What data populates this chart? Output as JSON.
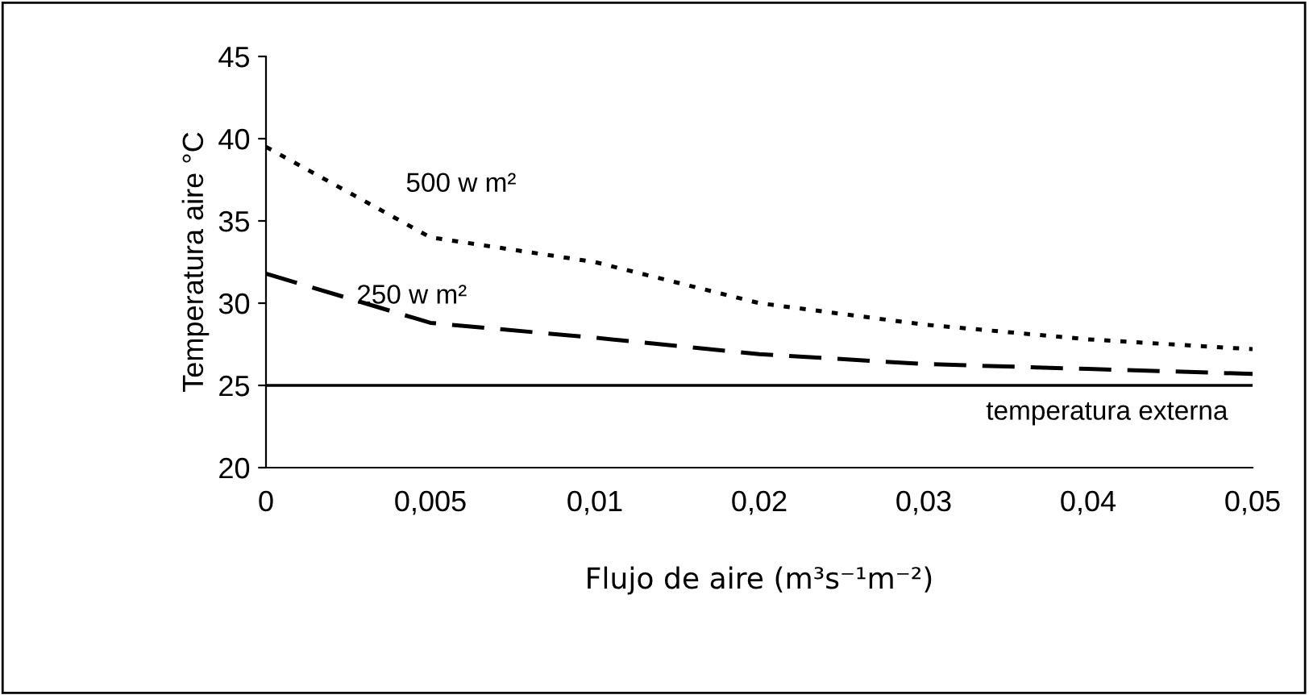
{
  "chart_data": {
    "type": "line",
    "xlabel": "Flujo de aire (m³s⁻¹m⁻²)",
    "ylabel": "Temperatura aire °C",
    "categories": [
      "0",
      "0,005",
      "0,01",
      "0,02",
      "0,03",
      "0,04",
      "0,05"
    ],
    "series": [
      {
        "name": "500 w m²",
        "color": "#000000",
        "line_style": "dotted",
        "values": [
          39.5,
          34,
          32.5,
          30,
          28.7,
          27.8,
          27.2
        ]
      },
      {
        "name": "250 w m²",
        "color": "#000000",
        "line_style": "dashed",
        "values": [
          31.8,
          28.8,
          27.9,
          26.9,
          26.3,
          26.0,
          25.7
        ]
      }
    ],
    "ref_lines": [
      {
        "axis": "y",
        "value": 25,
        "label": "temperatura externa",
        "color": "#000000",
        "line_style": "solid"
      }
    ],
    "ylim": [
      20,
      45
    ],
    "yticks": [
      20,
      25,
      30,
      35,
      40,
      45
    ],
    "grid": false,
    "legend": false,
    "marker": "none"
  }
}
